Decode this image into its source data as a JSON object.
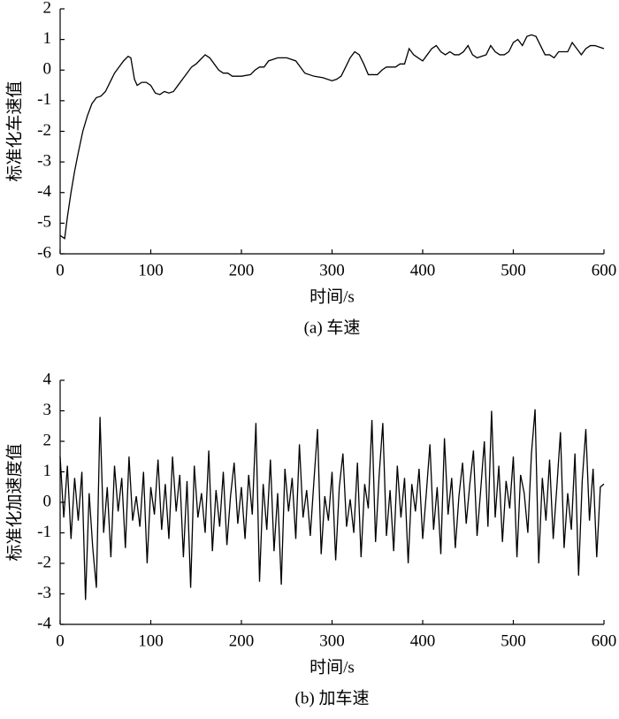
{
  "chart_data": [
    {
      "type": "line",
      "ylabel": "标准化车速值",
      "xlabel": "时间/s",
      "caption": "(a) 车速",
      "color": "#000000",
      "xlim": [
        0,
        600
      ],
      "ylim": [
        -6,
        2
      ],
      "xticks": [
        0,
        100,
        200,
        300,
        400,
        500,
        600
      ],
      "yticks": [
        -6,
        -5,
        -4,
        -3,
        -2,
        -1,
        0,
        1,
        2
      ],
      "x": [
        0,
        5,
        8,
        12,
        16,
        20,
        25,
        30,
        35,
        40,
        45,
        50,
        55,
        60,
        65,
        70,
        75,
        78,
        82,
        85,
        90,
        95,
        100,
        105,
        110,
        115,
        120,
        125,
        130,
        135,
        140,
        145,
        150,
        155,
        160,
        165,
        170,
        175,
        180,
        185,
        190,
        200,
        210,
        215,
        220,
        225,
        230,
        240,
        250,
        260,
        265,
        270,
        280,
        290,
        300,
        305,
        310,
        315,
        320,
        325,
        330,
        335,
        340,
        350,
        355,
        360,
        370,
        375,
        380,
        385,
        390,
        395,
        400,
        405,
        410,
        415,
        420,
        425,
        430,
        435,
        440,
        445,
        450,
        455,
        460,
        470,
        475,
        480,
        485,
        490,
        495,
        500,
        505,
        510,
        515,
        520,
        525,
        530,
        535,
        540,
        545,
        550,
        555,
        560,
        565,
        570,
        575,
        580,
        585,
        590,
        595,
        600
      ],
      "values": [
        -5.4,
        -5.5,
        -4.8,
        -4.0,
        -3.3,
        -2.7,
        -2.0,
        -1.5,
        -1.1,
        -0.9,
        -0.85,
        -0.7,
        -0.4,
        -0.1,
        0.1,
        0.3,
        0.45,
        0.4,
        -0.3,
        -0.5,
        -0.4,
        -0.4,
        -0.5,
        -0.75,
        -0.8,
        -0.7,
        -0.75,
        -0.7,
        -0.5,
        -0.3,
        -0.1,
        0.1,
        0.2,
        0.35,
        0.5,
        0.4,
        0.2,
        0.0,
        -0.1,
        -0.1,
        -0.2,
        -0.2,
        -0.15,
        0.0,
        0.1,
        0.1,
        0.3,
        0.4,
        0.4,
        0.3,
        0.1,
        -0.1,
        -0.2,
        -0.25,
        -0.35,
        -0.3,
        -0.2,
        0.1,
        0.4,
        0.6,
        0.5,
        0.2,
        -0.15,
        -0.15,
        0.0,
        0.1,
        0.1,
        0.2,
        0.2,
        0.7,
        0.5,
        0.4,
        0.3,
        0.5,
        0.7,
        0.8,
        0.6,
        0.5,
        0.6,
        0.5,
        0.5,
        0.6,
        0.8,
        0.5,
        0.4,
        0.5,
        0.8,
        0.6,
        0.5,
        0.5,
        0.6,
        0.9,
        1.0,
        0.8,
        1.1,
        1.15,
        1.1,
        0.8,
        0.5,
        0.5,
        0.4,
        0.6,
        0.6,
        0.6,
        0.9,
        0.7,
        0.5,
        0.7,
        0.8,
        0.8,
        0.75,
        0.7
      ]
    },
    {
      "type": "line",
      "ylabel": "标准化加速度值",
      "xlabel": "时间/s",
      "caption": "(b) 加车速",
      "color": "#000000",
      "xlim": [
        0,
        600
      ],
      "ylim": [
        -4,
        4
      ],
      "xticks": [
        0,
        100,
        200,
        300,
        400,
        500,
        600
      ],
      "yticks": [
        -4,
        -3,
        -2,
        -1,
        0,
        1,
        2,
        3,
        4
      ],
      "x": [
        0,
        4,
        8,
        12,
        16,
        20,
        24,
        28,
        32,
        36,
        40,
        44,
        48,
        52,
        56,
        60,
        64,
        68,
        72,
        76,
        80,
        84,
        88,
        92,
        96,
        100,
        104,
        108,
        112,
        116,
        120,
        124,
        128,
        132,
        136,
        140,
        144,
        148,
        152,
        156,
        160,
        164,
        168,
        172,
        176,
        180,
        184,
        188,
        192,
        196,
        200,
        204,
        208,
        212,
        216,
        220,
        224,
        228,
        232,
        236,
        240,
        244,
        248,
        252,
        256,
        260,
        264,
        268,
        272,
        276,
        280,
        284,
        288,
        292,
        296,
        300,
        304,
        308,
        312,
        316,
        320,
        324,
        328,
        332,
        336,
        340,
        344,
        348,
        352,
        356,
        360,
        364,
        368,
        372,
        376,
        380,
        384,
        388,
        392,
        396,
        400,
        404,
        408,
        412,
        416,
        420,
        424,
        428,
        432,
        436,
        440,
        444,
        448,
        452,
        456,
        460,
        464,
        468,
        472,
        476,
        480,
        484,
        488,
        492,
        496,
        500,
        504,
        508,
        512,
        516,
        520,
        524,
        528,
        532,
        536,
        540,
        544,
        548,
        552,
        556,
        560,
        564,
        568,
        572,
        576,
        580,
        584,
        588,
        592,
        596,
        600
      ],
      "values": [
        1.5,
        -0.5,
        1.2,
        -1.2,
        0.8,
        -0.6,
        1.0,
        -3.2,
        0.3,
        -1.5,
        -2.8,
        2.8,
        -1.0,
        0.5,
        -1.8,
        1.2,
        -0.3,
        0.8,
        -1.5,
        1.5,
        -0.6,
        0.2,
        -0.8,
        1.0,
        -2.0,
        0.5,
        -0.4,
        1.4,
        -0.9,
        0.6,
        -1.2,
        1.5,
        -0.3,
        0.9,
        -1.8,
        0.7,
        -2.8,
        1.2,
        -0.5,
        0.3,
        -1.0,
        1.7,
        -1.6,
        0.4,
        -0.8,
        1.0,
        -1.4,
        0.2,
        1.3,
        -0.7,
        0.5,
        -1.2,
        0.9,
        -0.4,
        2.6,
        -2.6,
        0.6,
        -0.9,
        1.4,
        -1.6,
        0.3,
        -2.7,
        1.1,
        -0.3,
        0.8,
        -1.2,
        1.9,
        -0.5,
        0.4,
        -1.1,
        0.7,
        2.4,
        -1.7,
        0.2,
        -0.6,
        1.0,
        -1.9,
        0.5,
        1.6,
        -0.8,
        0.1,
        -1.0,
        1.3,
        -1.8,
        0.6,
        -0.2,
        2.7,
        -1.3,
        0.9,
        2.6,
        -1.1,
        0.4,
        -1.6,
        1.2,
        -0.5,
        0.8,
        -2.0,
        0.6,
        -0.3,
        1.1,
        -1.2,
        0.3,
        1.9,
        -0.9,
        0.5,
        -1.7,
        2.1,
        -0.4,
        0.8,
        -1.5,
        0.2,
        1.3,
        -0.7,
        0.6,
        1.7,
        -1.1,
        0.4,
        2.0,
        -0.8,
        3.0,
        -0.5,
        1.2,
        -1.3,
        0.7,
        -0.2,
        1.5,
        -1.8,
        0.9,
        0.3,
        -1.0,
        1.6,
        3.05,
        -2.0,
        0.8,
        -0.6,
        1.4,
        -1.2,
        0.5,
        2.3,
        -1.5,
        0.3,
        -0.9,
        1.6,
        -2.4,
        0.7,
        2.4,
        -0.6,
        1.1,
        -1.8,
        0.5,
        0.6
      ]
    }
  ]
}
